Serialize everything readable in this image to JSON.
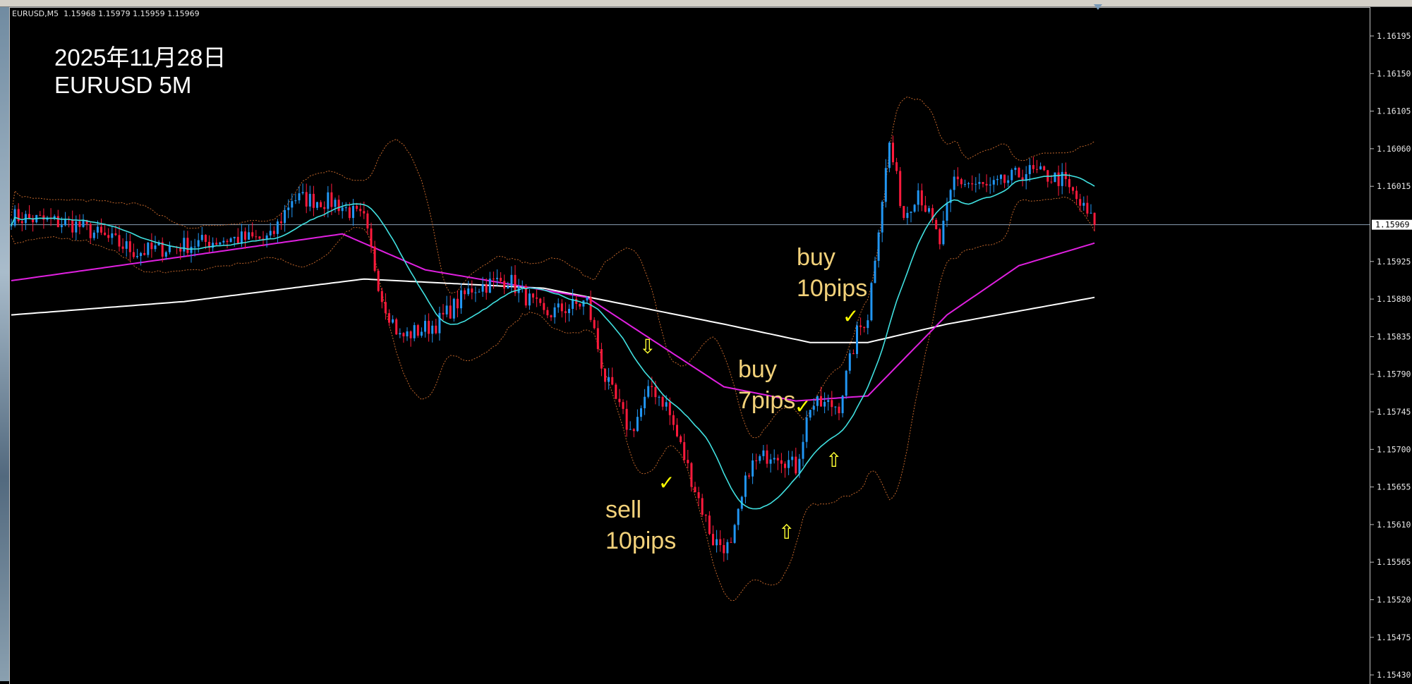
{
  "header": {
    "symbol_info": "EURUSD,M5  1.15968 1.15979 1.15959 1.15969"
  },
  "overlay": {
    "date_text": "2025年11月28日",
    "pair_text": "EURUSD   5M"
  },
  "annotations": [
    {
      "line1": "buy",
      "line2": "10pips"
    },
    {
      "line1": "buy",
      "line2": "7pips"
    },
    {
      "line1": "sell",
      "line2": "10pips"
    }
  ],
  "markers": {
    "down_arrow": "⇩",
    "up_arrow": "⇧",
    "check": "✓"
  },
  "colors": {
    "bull": "#2196f3",
    "bear": "#ff1a3c",
    "ma_short": "#40e0e0",
    "ma_mid": "#e020e0",
    "ma_long": "#ffffff",
    "bands": "#c0652a",
    "annotation": "#f2d17a",
    "marker": "#ffff33"
  },
  "chart_data": {
    "type": "candlestick",
    "symbol": "EURUSD",
    "timeframe": "M5",
    "current_price": "1.15969",
    "ylim": [
      1.15415,
      1.16235
    ],
    "y_ticks": [
      "1.16195",
      "1.16150",
      "1.16105",
      "1.16060",
      "1.16015",
      "1.15925",
      "1.15880",
      "1.15835",
      "1.15790",
      "1.15745",
      "1.15700",
      "1.15655",
      "1.15610",
      "1.15565",
      "1.15520",
      "1.15475",
      "1.15430"
    ],
    "bar_count": 302,
    "close_path": [
      [
        0,
        1.15979
      ],
      [
        18,
        1.15969
      ],
      [
        35,
        1.15936
      ],
      [
        60,
        1.15952
      ],
      [
        72,
        1.15952
      ],
      [
        78,
        1.16001
      ],
      [
        90,
        1.15996
      ],
      [
        98,
        1.15974
      ],
      [
        103,
        1.15882
      ],
      [
        108,
        1.15834
      ],
      [
        118,
        1.1585
      ],
      [
        128,
        1.15893
      ],
      [
        138,
        1.15904
      ],
      [
        148,
        1.15861
      ],
      [
        160,
        1.15877
      ],
      [
        165,
        1.15785
      ],
      [
        172,
        1.15721
      ],
      [
        178,
        1.15775
      ],
      [
        182,
        1.15753
      ],
      [
        188,
        1.15678
      ],
      [
        195,
        1.15591
      ],
      [
        200,
        1.15581
      ],
      [
        205,
        1.15678
      ],
      [
        212,
        1.15699
      ],
      [
        218,
        1.15678
      ],
      [
        222,
        1.15753
      ],
      [
        230,
        1.15753
      ],
      [
        235,
        1.15839
      ],
      [
        238,
        1.15861
      ],
      [
        241,
        1.15969
      ],
      [
        244,
        1.16066
      ],
      [
        248,
        1.15979
      ],
      [
        252,
        1.16012
      ],
      [
        258,
        1.15947
      ],
      [
        262,
        1.16023
      ],
      [
        272,
        1.16012
      ],
      [
        282,
        1.16033
      ],
      [
        292,
        1.16023
      ],
      [
        301,
        1.15969
      ]
    ],
    "ma_mid_path": [
      [
        0,
        1.15902
      ],
      [
        48,
        1.15931
      ],
      [
        92,
        1.15958
      ],
      [
        115,
        1.15915
      ],
      [
        160,
        1.15882
      ],
      [
        198,
        1.15775
      ],
      [
        218,
        1.15758
      ],
      [
        238,
        1.15764
      ],
      [
        260,
        1.15861
      ],
      [
        280,
        1.1592
      ],
      [
        301,
        1.15947
      ]
    ],
    "ma_long_path": [
      [
        0,
        1.15861
      ],
      [
        48,
        1.15877
      ],
      [
        98,
        1.15904
      ],
      [
        148,
        1.15893
      ],
      [
        198,
        1.1585
      ],
      [
        222,
        1.15828
      ],
      [
        238,
        1.15828
      ],
      [
        260,
        1.1585
      ],
      [
        301,
        1.15882
      ]
    ],
    "indicators": [
      "moving average (short)",
      "moving average (mid)",
      "moving average (long)",
      "bollinger bands"
    ]
  }
}
